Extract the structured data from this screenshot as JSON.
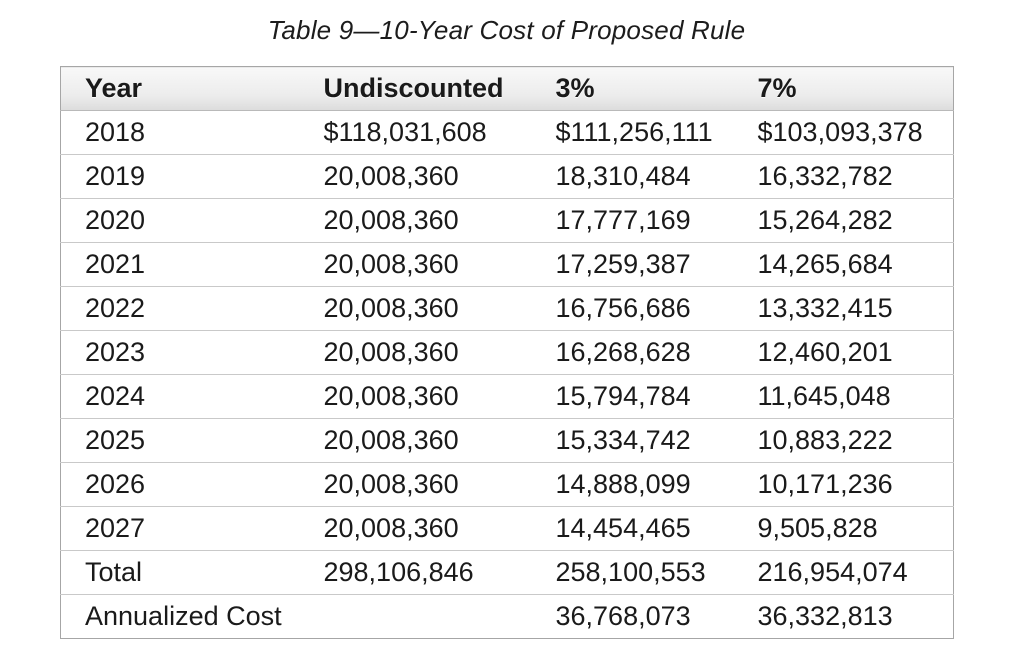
{
  "chart_data": {
    "type": "table",
    "title": "Table 9—10-Year Cost of Proposed Rule",
    "columns": [
      "Year",
      "Undiscounted",
      "3%",
      "7%"
    ],
    "rows": [
      [
        "2018",
        "$118,031,608",
        "$111,256,111",
        "$103,093,378"
      ],
      [
        "2019",
        "20,008,360",
        "18,310,484",
        "16,332,782"
      ],
      [
        "2020",
        "20,008,360",
        "17,777,169",
        "15,264,282"
      ],
      [
        "2021",
        "20,008,360",
        "17,259,387",
        "14,265,684"
      ],
      [
        "2022",
        "20,008,360",
        "16,756,686",
        "13,332,415"
      ],
      [
        "2023",
        "20,008,360",
        "16,268,628",
        "12,460,201"
      ],
      [
        "2024",
        "20,008,360",
        "15,794,784",
        "11,645,048"
      ],
      [
        "2025",
        "20,008,360",
        "15,334,742",
        "10,883,222"
      ],
      [
        "2026",
        "20,008,360",
        "14,888,099",
        "10,171,236"
      ],
      [
        "2027",
        "20,008,360",
        "14,454,465",
        "9,505,828"
      ],
      [
        "Total",
        "298,106,846",
        "258,100,553",
        "216,954,074"
      ],
      [
        "Annualized Cost",
        "",
        "36,768,073",
        "36,332,813"
      ]
    ],
    "layout": {
      "legend": "none",
      "grid": "horizontal-row-dividers-only",
      "column_alignment": "left"
    }
  },
  "colors": {
    "text": "#1a1a1a",
    "header_gradient_top": "#f8f8f8",
    "header_gradient_bottom": "#dcdcdc",
    "table_outer_border": "#a6a6a6",
    "row_divider": "#c9c9c9",
    "page_background": "#ffffff"
  }
}
